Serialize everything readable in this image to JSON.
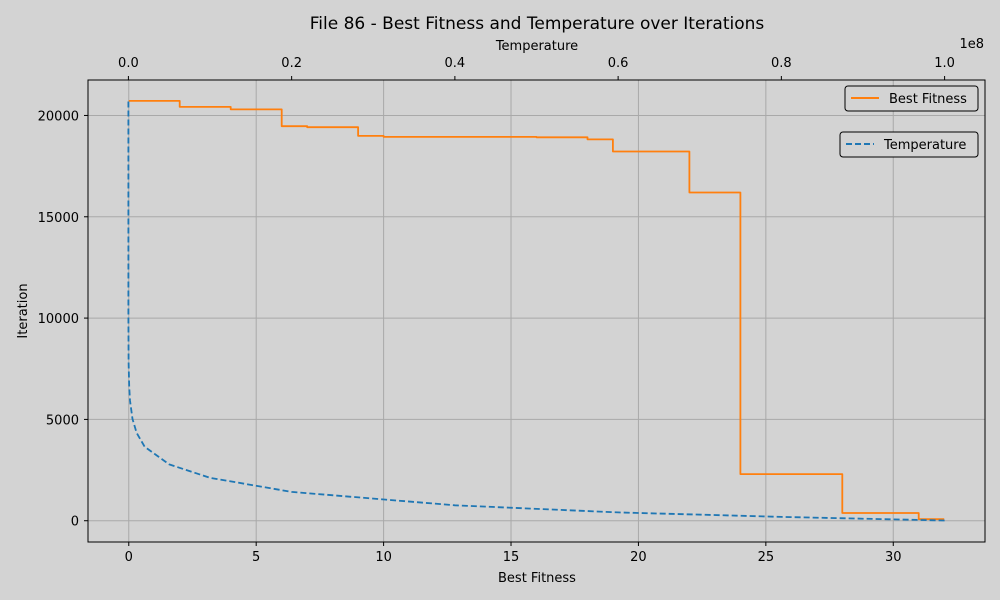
{
  "chart_data": {
    "type": "line",
    "title": "File 86 - Best Fitness and Temperature over Iterations",
    "xlabel": "Best Fitness",
    "ylabel": "Iteration",
    "top_xlabel": "Temperature",
    "top_offset_label": "1e8",
    "xlim": [
      -1.6,
      33.6
    ],
    "ylim": [
      -1050,
      21750
    ],
    "top_xlim": [
      -0.0495,
      1.0495
    ],
    "x_ticks": [
      0,
      5,
      10,
      15,
      20,
      25,
      30
    ],
    "y_ticks": [
      0,
      5000,
      10000,
      15000,
      20000
    ],
    "top_ticks": [
      0.0,
      0.2,
      0.4,
      0.6,
      0.8,
      1.0
    ],
    "x_tick_labels": [
      "0",
      "5",
      "10",
      "15",
      "20",
      "25",
      "30"
    ],
    "y_tick_labels": [
      "0",
      "5000",
      "10000",
      "15000",
      "20000"
    ],
    "top_tick_labels": [
      "0.0",
      "0.2",
      "0.4",
      "0.6",
      "0.8",
      "1.0"
    ],
    "grid": true,
    "series": [
      {
        "name": "Best Fitness",
        "axis": "bottom",
        "color": "#ff7f0e",
        "style": "solid",
        "x": [
          0,
          2,
          2,
          4,
          4,
          6,
          6,
          7,
          7,
          9,
          9,
          10,
          10,
          16,
          16,
          18,
          18,
          19,
          19,
          22,
          22,
          24,
          24,
          28,
          28,
          31,
          31,
          32
        ],
        "y": [
          20720,
          20720,
          20420,
          20420,
          20300,
          20300,
          19470,
          19470,
          19420,
          19420,
          18990,
          18990,
          18940,
          18940,
          18920,
          18920,
          18820,
          18820,
          18220,
          18220,
          16200,
          16200,
          2300,
          2300,
          380,
          380,
          80,
          80
        ]
      },
      {
        "name": "Temperature",
        "axis": "top",
        "color": "#1f77b4",
        "style": "dashed",
        "x": [
          1.0,
          0.8,
          0.6,
          0.4,
          0.2,
          0.1,
          0.05,
          0.02,
          0.01,
          0.005,
          0.002,
          0.001,
          0.0003,
          0.0001,
          3e-05,
          1e-05,
          2e-06,
          3e-07,
          0.0
        ],
        "y": [
          10,
          190,
          410,
          760,
          1420,
          2120,
          2780,
          3650,
          4340,
          5020,
          5930,
          6620,
          7820,
          8910,
          10100,
          11210,
          12820,
          14700,
          20720
        ]
      }
    ],
    "legends": [
      {
        "entries": [
          "Best Fitness"
        ],
        "placement": "top-right"
      },
      {
        "entries": [
          "Temperature"
        ],
        "placement": "upper-right, below first legend"
      }
    ],
    "colors": {
      "background": "#d3d3d3",
      "grid": "#a9a9a9"
    }
  }
}
